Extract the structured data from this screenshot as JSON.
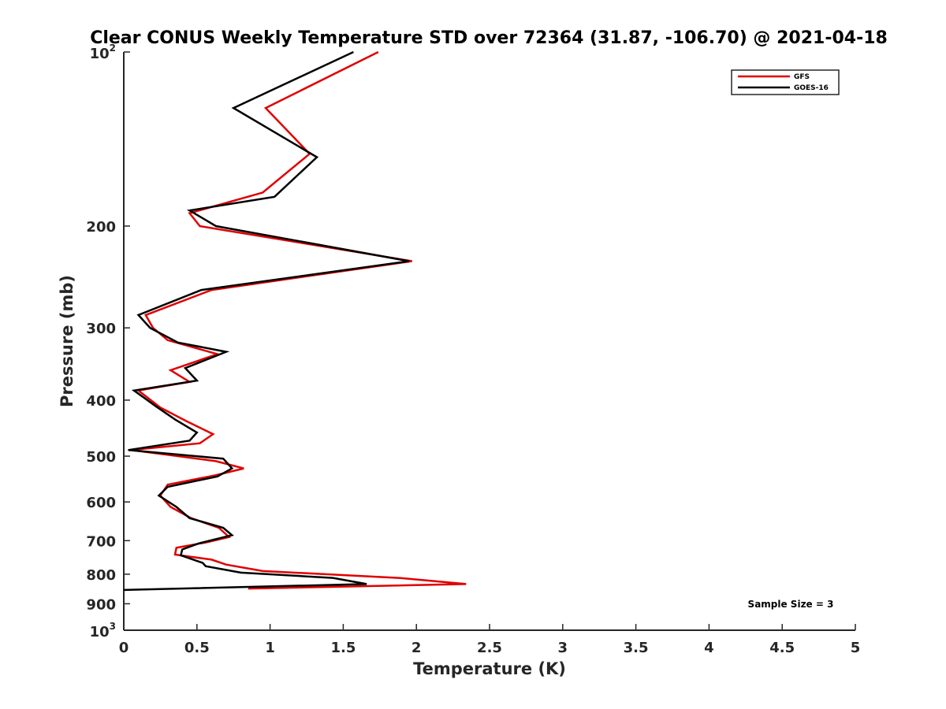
{
  "chart_data": {
    "type": "line",
    "title": "Clear CONUS Weekly Temperature STD over 72364 (31.87, -106.70) @ 2021-04-18",
    "xlabel": "Temperature (K)",
    "ylabel": "Pressure (mb)",
    "xlim": [
      0,
      5
    ],
    "ylim": [
      100,
      1000
    ],
    "yscale": "log",
    "yreversed": true,
    "grid": false,
    "legend_position": "top-right",
    "x_ticks": [
      0,
      0.5,
      1,
      1.5,
      2,
      2.5,
      3,
      3.5,
      4,
      4.5,
      5
    ],
    "x_tick_labels": [
      "0",
      "0.5",
      "1",
      "1.5",
      "2",
      "2.5",
      "3",
      "3.5",
      "4",
      "4.5",
      "5"
    ],
    "y_ticks": [
      {
        "value": 100,
        "base": "10",
        "exp": "2"
      },
      {
        "value": 200,
        "label": "200"
      },
      {
        "value": 300,
        "label": "300"
      },
      {
        "value": 400,
        "label": "400"
      },
      {
        "value": 500,
        "label": "500"
      },
      {
        "value": 600,
        "label": "600"
      },
      {
        "value": 700,
        "label": "700"
      },
      {
        "value": 800,
        "label": "800"
      },
      {
        "value": 900,
        "label": "900"
      },
      {
        "value": 1000,
        "base": "10",
        "exp": "3"
      }
    ],
    "annotation": "Sample Size = 3",
    "series": [
      {
        "name": "GFS",
        "color": "#e00000",
        "points": [
          [
            1.74,
            100
          ],
          [
            0.97,
            125
          ],
          [
            1.27,
            150
          ],
          [
            0.95,
            175
          ],
          [
            0.45,
            190
          ],
          [
            0.52,
            200
          ],
          [
            1.97,
            230
          ],
          [
            0.6,
            258
          ],
          [
            0.15,
            285
          ],
          [
            0.2,
            300
          ],
          [
            0.3,
            315
          ],
          [
            0.64,
            333
          ],
          [
            0.32,
            355
          ],
          [
            0.45,
            372
          ],
          [
            0.1,
            385
          ],
          [
            0.25,
            412
          ],
          [
            0.43,
            435
          ],
          [
            0.61,
            458
          ],
          [
            0.52,
            475
          ],
          [
            0.05,
            488
          ],
          [
            0.63,
            510
          ],
          [
            0.82,
            525
          ],
          [
            0.62,
            540
          ],
          [
            0.3,
            560
          ],
          [
            0.25,
            585
          ],
          [
            0.32,
            612
          ],
          [
            0.46,
            640
          ],
          [
            0.65,
            665
          ],
          [
            0.72,
            690
          ],
          [
            0.56,
            705
          ],
          [
            0.36,
            720
          ],
          [
            0.35,
            740
          ],
          [
            0.6,
            755
          ],
          [
            0.7,
            770
          ],
          [
            0.95,
            790
          ],
          [
            1.88,
            812
          ],
          [
            2.34,
            832
          ],
          [
            0.85,
            847
          ]
        ]
      },
      {
        "name": "GOES-16",
        "color": "#000000",
        "points": [
          [
            1.57,
            100
          ],
          [
            0.75,
            125
          ],
          [
            1.32,
            152
          ],
          [
            1.03,
            178
          ],
          [
            0.45,
            188
          ],
          [
            0.63,
            200
          ],
          [
            1.95,
            230
          ],
          [
            0.53,
            258
          ],
          [
            0.1,
            285
          ],
          [
            0.18,
            300
          ],
          [
            0.37,
            318
          ],
          [
            0.7,
            330
          ],
          [
            0.42,
            352
          ],
          [
            0.5,
            370
          ],
          [
            0.07,
            385
          ],
          [
            0.22,
            410
          ],
          [
            0.35,
            432
          ],
          [
            0.5,
            455
          ],
          [
            0.45,
            470
          ],
          [
            0.03,
            488
          ],
          [
            0.68,
            505
          ],
          [
            0.74,
            525
          ],
          [
            0.64,
            542
          ],
          [
            0.3,
            565
          ],
          [
            0.24,
            585
          ],
          [
            0.36,
            612
          ],
          [
            0.45,
            640
          ],
          [
            0.68,
            665
          ],
          [
            0.74,
            685
          ],
          [
            0.51,
            708
          ],
          [
            0.4,
            725
          ],
          [
            0.39,
            742
          ],
          [
            0.54,
            765
          ],
          [
            0.56,
            775
          ],
          [
            0.8,
            795
          ],
          [
            1.43,
            812
          ],
          [
            1.66,
            832
          ],
          [
            0.0,
            852
          ]
        ]
      }
    ]
  }
}
